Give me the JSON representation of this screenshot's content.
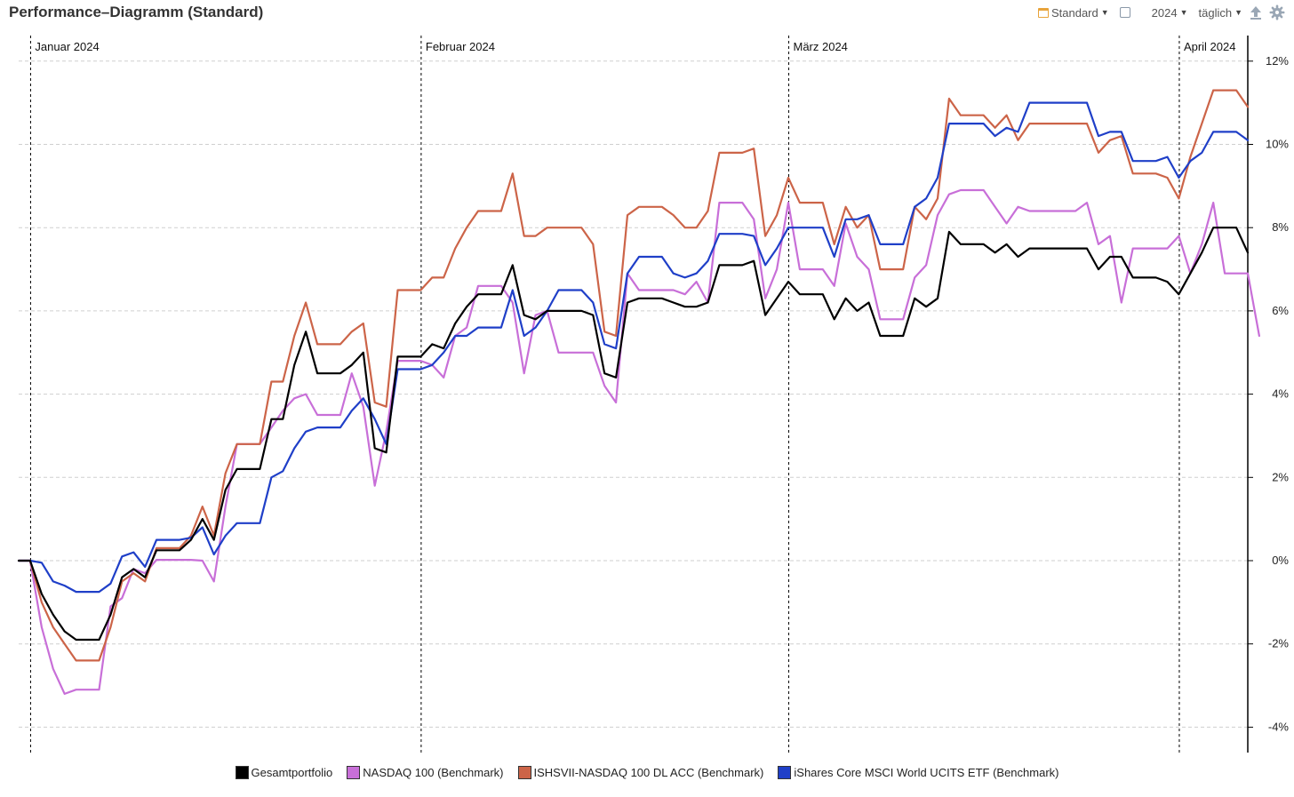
{
  "header": {
    "title": "Performance–Diagramm (Standard)",
    "view_label": "Standard",
    "year_label": "2024",
    "interval_label": "täglich"
  },
  "colors": {
    "Gesamtportfolio": "#000000",
    "NASDAQ 100 (Benchmark)": "#c86fd8",
    "ISHSVII-NASDAQ 100 DL ACC (Benchmark)": "#cc6448",
    "iShares Core MSCI World UCITS ETF (Benchmark)": "#1f3fc8"
  },
  "chart_data": {
    "type": "line",
    "xlabel": "",
    "ylabel": "",
    "ylim": [
      -4.5,
      12.8
    ],
    "yticks": [
      12,
      10,
      8,
      6,
      4,
      2,
      0,
      -2,
      -4
    ],
    "ytick_labels": [
      "12%",
      "10%",
      "8%",
      "6%",
      "4%",
      "2%",
      "0%",
      "-2%",
      "-4%"
    ],
    "y_axis_side": "right",
    "grid": true,
    "legend": "bottom",
    "month_markers": [
      {
        "label": "Januar 2024",
        "index": 1
      },
      {
        "label": "Februar 2024",
        "index": 35
      },
      {
        "label": "März 2024",
        "index": 67
      },
      {
        "label": "April 2024",
        "index": 101
      }
    ],
    "series": [
      {
        "name": "Gesamtportfolio",
        "values": [
          0,
          0,
          -0.8,
          -1.3,
          -1.7,
          -1.9,
          -1.9,
          -1.9,
          -1.3,
          -0.4,
          -0.2,
          -0.4,
          0.25,
          0.25,
          0.25,
          0.5,
          1.0,
          0.5,
          1.7,
          2.2,
          2.2,
          2.2,
          3.4,
          3.4,
          4.7,
          5.5,
          4.5,
          4.5,
          4.5,
          4.7,
          5.0,
          2.7,
          2.6,
          4.9,
          4.9,
          4.9,
          5.2,
          5.1,
          5.7,
          6.1,
          6.4,
          6.4,
          6.4,
          7.1,
          5.9,
          5.8,
          6.0,
          6.0,
          6.0,
          6.0,
          5.9,
          4.5,
          4.4,
          6.2,
          6.3,
          6.3,
          6.3,
          6.2,
          6.1,
          6.1,
          6.2,
          7.1,
          7.1,
          7.1,
          7.2,
          5.9,
          6.3,
          6.7,
          6.4,
          6.4,
          6.4,
          5.8,
          6.3,
          6.0,
          6.2,
          5.4,
          5.4,
          5.4,
          6.3,
          6.1,
          6.3,
          7.9,
          7.6,
          7.6,
          7.6,
          7.4,
          7.6,
          7.3,
          7.5,
          7.5,
          7.5,
          7.5,
          7.5,
          7.5,
          7.0,
          7.3,
          7.3,
          6.8,
          6.8,
          6.8,
          6.7,
          6.4,
          6.9,
          7.4,
          8.0,
          8.0,
          8.0,
          7.4
        ]
      },
      {
        "name": "NASDAQ 100 (Benchmark)",
        "values": [
          0,
          0,
          -1.6,
          -2.6,
          -3.2,
          -3.1,
          -3.1,
          -3.1,
          -1.1,
          -0.9,
          -0.2,
          -0.3,
          0.02,
          0.02,
          0.02,
          0.02,
          0.0,
          -0.5,
          1.3,
          2.8,
          2.8,
          2.8,
          3.2,
          3.6,
          3.9,
          4.0,
          3.5,
          3.5,
          3.5,
          4.5,
          3.7,
          1.8,
          3.1,
          4.8,
          4.8,
          4.8,
          4.7,
          4.4,
          5.4,
          5.6,
          6.6,
          6.6,
          6.6,
          6.2,
          4.5,
          5.9,
          6.0,
          5.0,
          5.0,
          5.0,
          5.0,
          4.2,
          3.8,
          6.9,
          6.5,
          6.5,
          6.5,
          6.5,
          6.4,
          6.7,
          6.2,
          8.6,
          8.6,
          8.6,
          8.2,
          6.3,
          7.0,
          8.6,
          7.0,
          7.0,
          7.0,
          6.6,
          8.1,
          7.3,
          7.0,
          5.8,
          5.8,
          5.8,
          6.8,
          7.1,
          8.3,
          8.8,
          8.9,
          8.9,
          8.9,
          8.5,
          8.1,
          8.5,
          8.4,
          8.4,
          8.4,
          8.4,
          8.4,
          8.6,
          7.6,
          7.8,
          6.2,
          7.5,
          7.5,
          7.5,
          7.5,
          7.8,
          6.9,
          7.6,
          8.6,
          6.9,
          6.9,
          6.9,
          5.4
        ]
      },
      {
        "name": "ISHSVII-NASDAQ 100 DL ACC (Benchmark)",
        "values": [
          0,
          0,
          -1.0,
          -1.6,
          -2.0,
          -2.4,
          -2.4,
          -2.4,
          -1.6,
          -0.5,
          -0.3,
          -0.5,
          0.3,
          0.3,
          0.3,
          0.6,
          1.3,
          0.6,
          2.1,
          2.8,
          2.8,
          2.8,
          4.3,
          4.3,
          5.4,
          6.2,
          5.2,
          5.2,
          5.2,
          5.5,
          5.7,
          3.8,
          3.7,
          6.5,
          6.5,
          6.5,
          6.8,
          6.8,
          7.5,
          8.0,
          8.4,
          8.4,
          8.4,
          9.3,
          7.8,
          7.8,
          8.0,
          8.0,
          8.0,
          8.0,
          7.6,
          5.5,
          5.4,
          8.3,
          8.5,
          8.5,
          8.5,
          8.3,
          8.0,
          8.0,
          8.4,
          9.8,
          9.8,
          9.8,
          9.9,
          7.8,
          8.3,
          9.2,
          8.6,
          8.6,
          8.6,
          7.6,
          8.5,
          8.0,
          8.3,
          7.0,
          7.0,
          7.0,
          8.5,
          8.2,
          8.7,
          11.1,
          10.7,
          10.7,
          10.7,
          10.4,
          10.7,
          10.1,
          10.5,
          10.5,
          10.5,
          10.5,
          10.5,
          10.5,
          9.8,
          10.1,
          10.2,
          9.3,
          9.3,
          9.3,
          9.2,
          8.7,
          9.7,
          10.5,
          11.3,
          11.3,
          11.3,
          10.9
        ]
      },
      {
        "name": "iShares Core MSCI World UCITS ETF (Benchmark)",
        "values": [
          0,
          0,
          -0.05,
          -0.5,
          -0.6,
          -0.75,
          -0.75,
          -0.75,
          -0.55,
          0.1,
          0.2,
          -0.15,
          0.5,
          0.5,
          0.5,
          0.55,
          0.8,
          0.15,
          0.6,
          0.9,
          0.9,
          0.9,
          2.0,
          2.15,
          2.7,
          3.1,
          3.2,
          3.2,
          3.2,
          3.6,
          3.9,
          3.4,
          2.8,
          4.6,
          4.6,
          4.6,
          4.7,
          5.0,
          5.4,
          5.4,
          5.6,
          5.6,
          5.6,
          6.5,
          5.4,
          5.6,
          6.0,
          6.5,
          6.5,
          6.5,
          6.2,
          5.2,
          5.1,
          6.9,
          7.3,
          7.3,
          7.3,
          6.9,
          6.8,
          6.9,
          7.2,
          7.85,
          7.85,
          7.85,
          7.8,
          7.1,
          7.5,
          8.0,
          8.0,
          8.0,
          8.0,
          7.3,
          8.2,
          8.2,
          8.3,
          7.6,
          7.6,
          7.6,
          8.5,
          8.7,
          9.2,
          10.5,
          10.5,
          10.5,
          10.5,
          10.2,
          10.4,
          10.3,
          11.0,
          11.0,
          11.0,
          11.0,
          11.0,
          11.0,
          10.2,
          10.3,
          10.3,
          9.6,
          9.6,
          9.6,
          9.7,
          9.2,
          9.6,
          9.8,
          10.3,
          10.3,
          10.3,
          10.1
        ]
      }
    ]
  }
}
